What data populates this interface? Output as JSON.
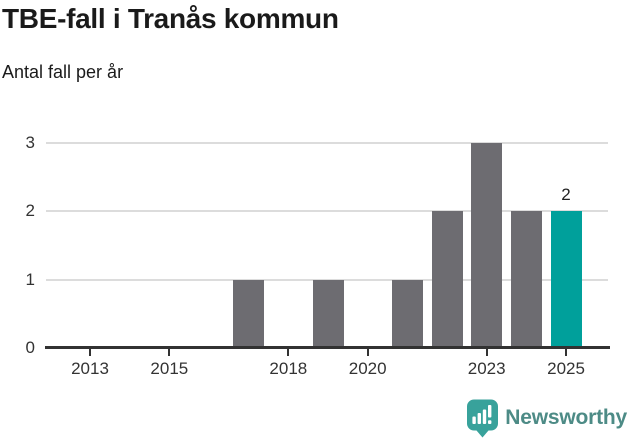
{
  "header": {
    "title": "TBE-fall i Tranås kommun",
    "subtitle": "Antal fall per år"
  },
  "chart_data": {
    "type": "bar",
    "title": "TBE-fall i Tranås kommun",
    "subtitle": "Antal fall per år",
    "x": [
      2012,
      2013,
      2014,
      2015,
      2016,
      2017,
      2018,
      2019,
      2020,
      2021,
      2022,
      2023,
      2024,
      2025
    ],
    "values": [
      0,
      0,
      0,
      0,
      0,
      1,
      0,
      1,
      0,
      1,
      2,
      3,
      2,
      2
    ],
    "highlight": {
      "year": 2025,
      "value": 2,
      "label": "2"
    },
    "xticks": [
      2013,
      2015,
      2018,
      2020,
      2023,
      2025
    ],
    "yticks": [
      0,
      1,
      2,
      3
    ],
    "ylim": [
      0,
      3
    ],
    "grid": "horizontal",
    "legend": "none",
    "colors": {
      "bar": "#6d6c71",
      "highlight": "#00a09b",
      "grid": "#dcdcdc",
      "axis": "#323232",
      "tick_text": "#333333",
      "label_text": "#222222"
    }
  },
  "footer": {
    "brand": "Newsworthy",
    "brand_color": "#4d8b86",
    "logo_color": "#38a29b",
    "logo_icon": "newsworthy-speech-bubble-chart-icon"
  }
}
